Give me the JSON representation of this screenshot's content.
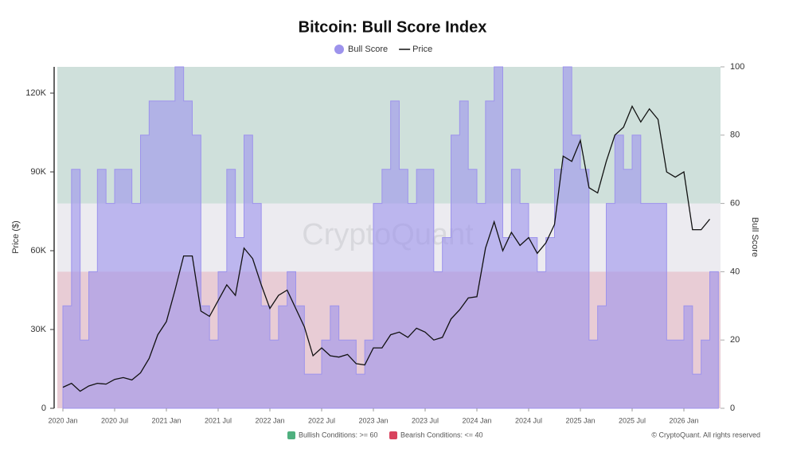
{
  "chart_data": {
    "type": "line",
    "title": "Bitcoin: Bull Score Index",
    "watermark": "CryptoQuant",
    "copyright": "© CryptoQuant. All rights reserved",
    "y_label": "Price ($)",
    "y2_label": "Bull Score",
    "x": [
      "2020-01",
      "2020-02",
      "2020-03",
      "2020-04",
      "2020-05",
      "2020-06",
      "2020-07",
      "2020-08",
      "2020-09",
      "2020-10",
      "2020-11",
      "2020-12",
      "2021-01",
      "2021-02",
      "2021-03",
      "2021-04",
      "2021-05",
      "2021-06",
      "2021-07",
      "2021-08",
      "2021-09",
      "2021-10",
      "2021-11",
      "2021-12",
      "2022-01",
      "2022-02",
      "2022-03",
      "2022-04",
      "2022-05",
      "2022-06",
      "2022-07",
      "2022-08",
      "2022-09",
      "2022-10",
      "2022-11",
      "2022-12",
      "2023-01",
      "2023-02",
      "2023-03",
      "2023-04",
      "2023-05",
      "2023-06",
      "2023-07",
      "2023-08",
      "2023-09",
      "2023-10",
      "2023-11",
      "2023-12",
      "2024-01",
      "2024-02",
      "2024-03",
      "2024-04",
      "2024-05",
      "2024-06",
      "2024-07",
      "2024-08",
      "2024-09",
      "2024-10",
      "2024-11",
      "2024-12",
      "2025-01",
      "2025-02",
      "2025-03",
      "2025-04",
      "2025-05",
      "2025-06",
      "2025-07",
      "2025-08",
      "2025-09",
      "2025-10",
      "2025-11",
      "2025-12",
      "2026-01",
      "2026-02",
      "2026-03",
      "2026-04"
    ],
    "series": [
      {
        "name": "Bull Score",
        "color": "#9d93ec",
        "axis": "y2",
        "type": "area",
        "values": [
          30,
          70,
          20,
          40,
          70,
          60,
          70,
          70,
          60,
          80,
          90,
          90,
          90,
          100,
          90,
          80,
          30,
          20,
          40,
          70,
          50,
          80,
          60,
          30,
          20,
          30,
          40,
          30,
          10,
          10,
          20,
          30,
          20,
          20,
          10,
          20,
          60,
          70,
          90,
          70,
          60,
          70,
          70,
          40,
          50,
          80,
          90,
          70,
          60,
          90,
          100,
          50,
          70,
          60,
          50,
          40,
          50,
          70,
          100,
          80,
          70,
          20,
          30,
          60,
          80,
          70,
          80,
          60,
          60,
          60,
          20,
          20,
          30,
          10,
          20,
          40
        ]
      },
      {
        "name": "Price",
        "color": "#111111",
        "type": "line",
        "values": [
          8000,
          9500,
          6500,
          8500,
          9500,
          9200,
          11000,
          11700,
          10800,
          13500,
          19000,
          28000,
          33000,
          45000,
          58000,
          58000,
          37000,
          35000,
          41000,
          47000,
          43000,
          61000,
          57000,
          47000,
          38000,
          43000,
          45000,
          38000,
          31000,
          20000,
          23000,
          20000,
          19500,
          20500,
          17000,
          16500,
          23000,
          23000,
          28000,
          29000,
          27000,
          30500,
          29000,
          26000,
          27000,
          34000,
          37500,
          42000,
          42500,
          61000,
          71000,
          60000,
          67000,
          62000,
          65000,
          59000,
          63000,
          70000,
          96000,
          94000,
          102000,
          84000,
          82000,
          94000,
          104000,
          107000,
          115000,
          109000,
          114000,
          110000,
          90000,
          88000,
          90000,
          68000,
          68000,
          72000
        ]
      }
    ],
    "zones": [
      {
        "label": "Bullish Conditions: >= 60",
        "from": 60,
        "to": 100,
        "color": "#4fb07f"
      },
      {
        "label": "Bearish Conditions: <= 40",
        "from": 0,
        "to": 40,
        "color": "#d9435e"
      }
    ],
    "ylim": [
      0,
      130000
    ],
    "yticks": [
      0,
      {
        "value": 30000,
        "label": "30K"
      },
      {
        "value": 60000,
        "label": "60K"
      },
      {
        "value": 90000,
        "label": "90K"
      },
      {
        "value": 120000,
        "label": "120K"
      }
    ],
    "y2lim": [
      0,
      100
    ],
    "y2ticks": [
      0,
      20,
      40,
      60,
      80,
      100
    ],
    "xticks": [
      {
        "value": "2020-01",
        "label": "2020 Jan"
      },
      {
        "value": "2020-07",
        "label": "2020 Jul"
      },
      {
        "value": "2021-01",
        "label": "2021 Jan"
      },
      {
        "value": "2021-07",
        "label": "2021 Jul"
      },
      {
        "value": "2022-01",
        "label": "2022 Jan"
      },
      {
        "value": "2022-07",
        "label": "2022 Jul"
      },
      {
        "value": "2023-01",
        "label": "2023 Jan"
      },
      {
        "value": "2023-07",
        "label": "2023 Jul"
      },
      {
        "value": "2024-01",
        "label": "2024 Jan"
      },
      {
        "value": "2024-07",
        "label": "2024 Jul"
      },
      {
        "value": "2025-01",
        "label": "2025 Jan"
      },
      {
        "value": "2025-07",
        "label": "2025 Jul"
      },
      {
        "value": "2026-01",
        "label": "2026 Jan"
      }
    ]
  }
}
